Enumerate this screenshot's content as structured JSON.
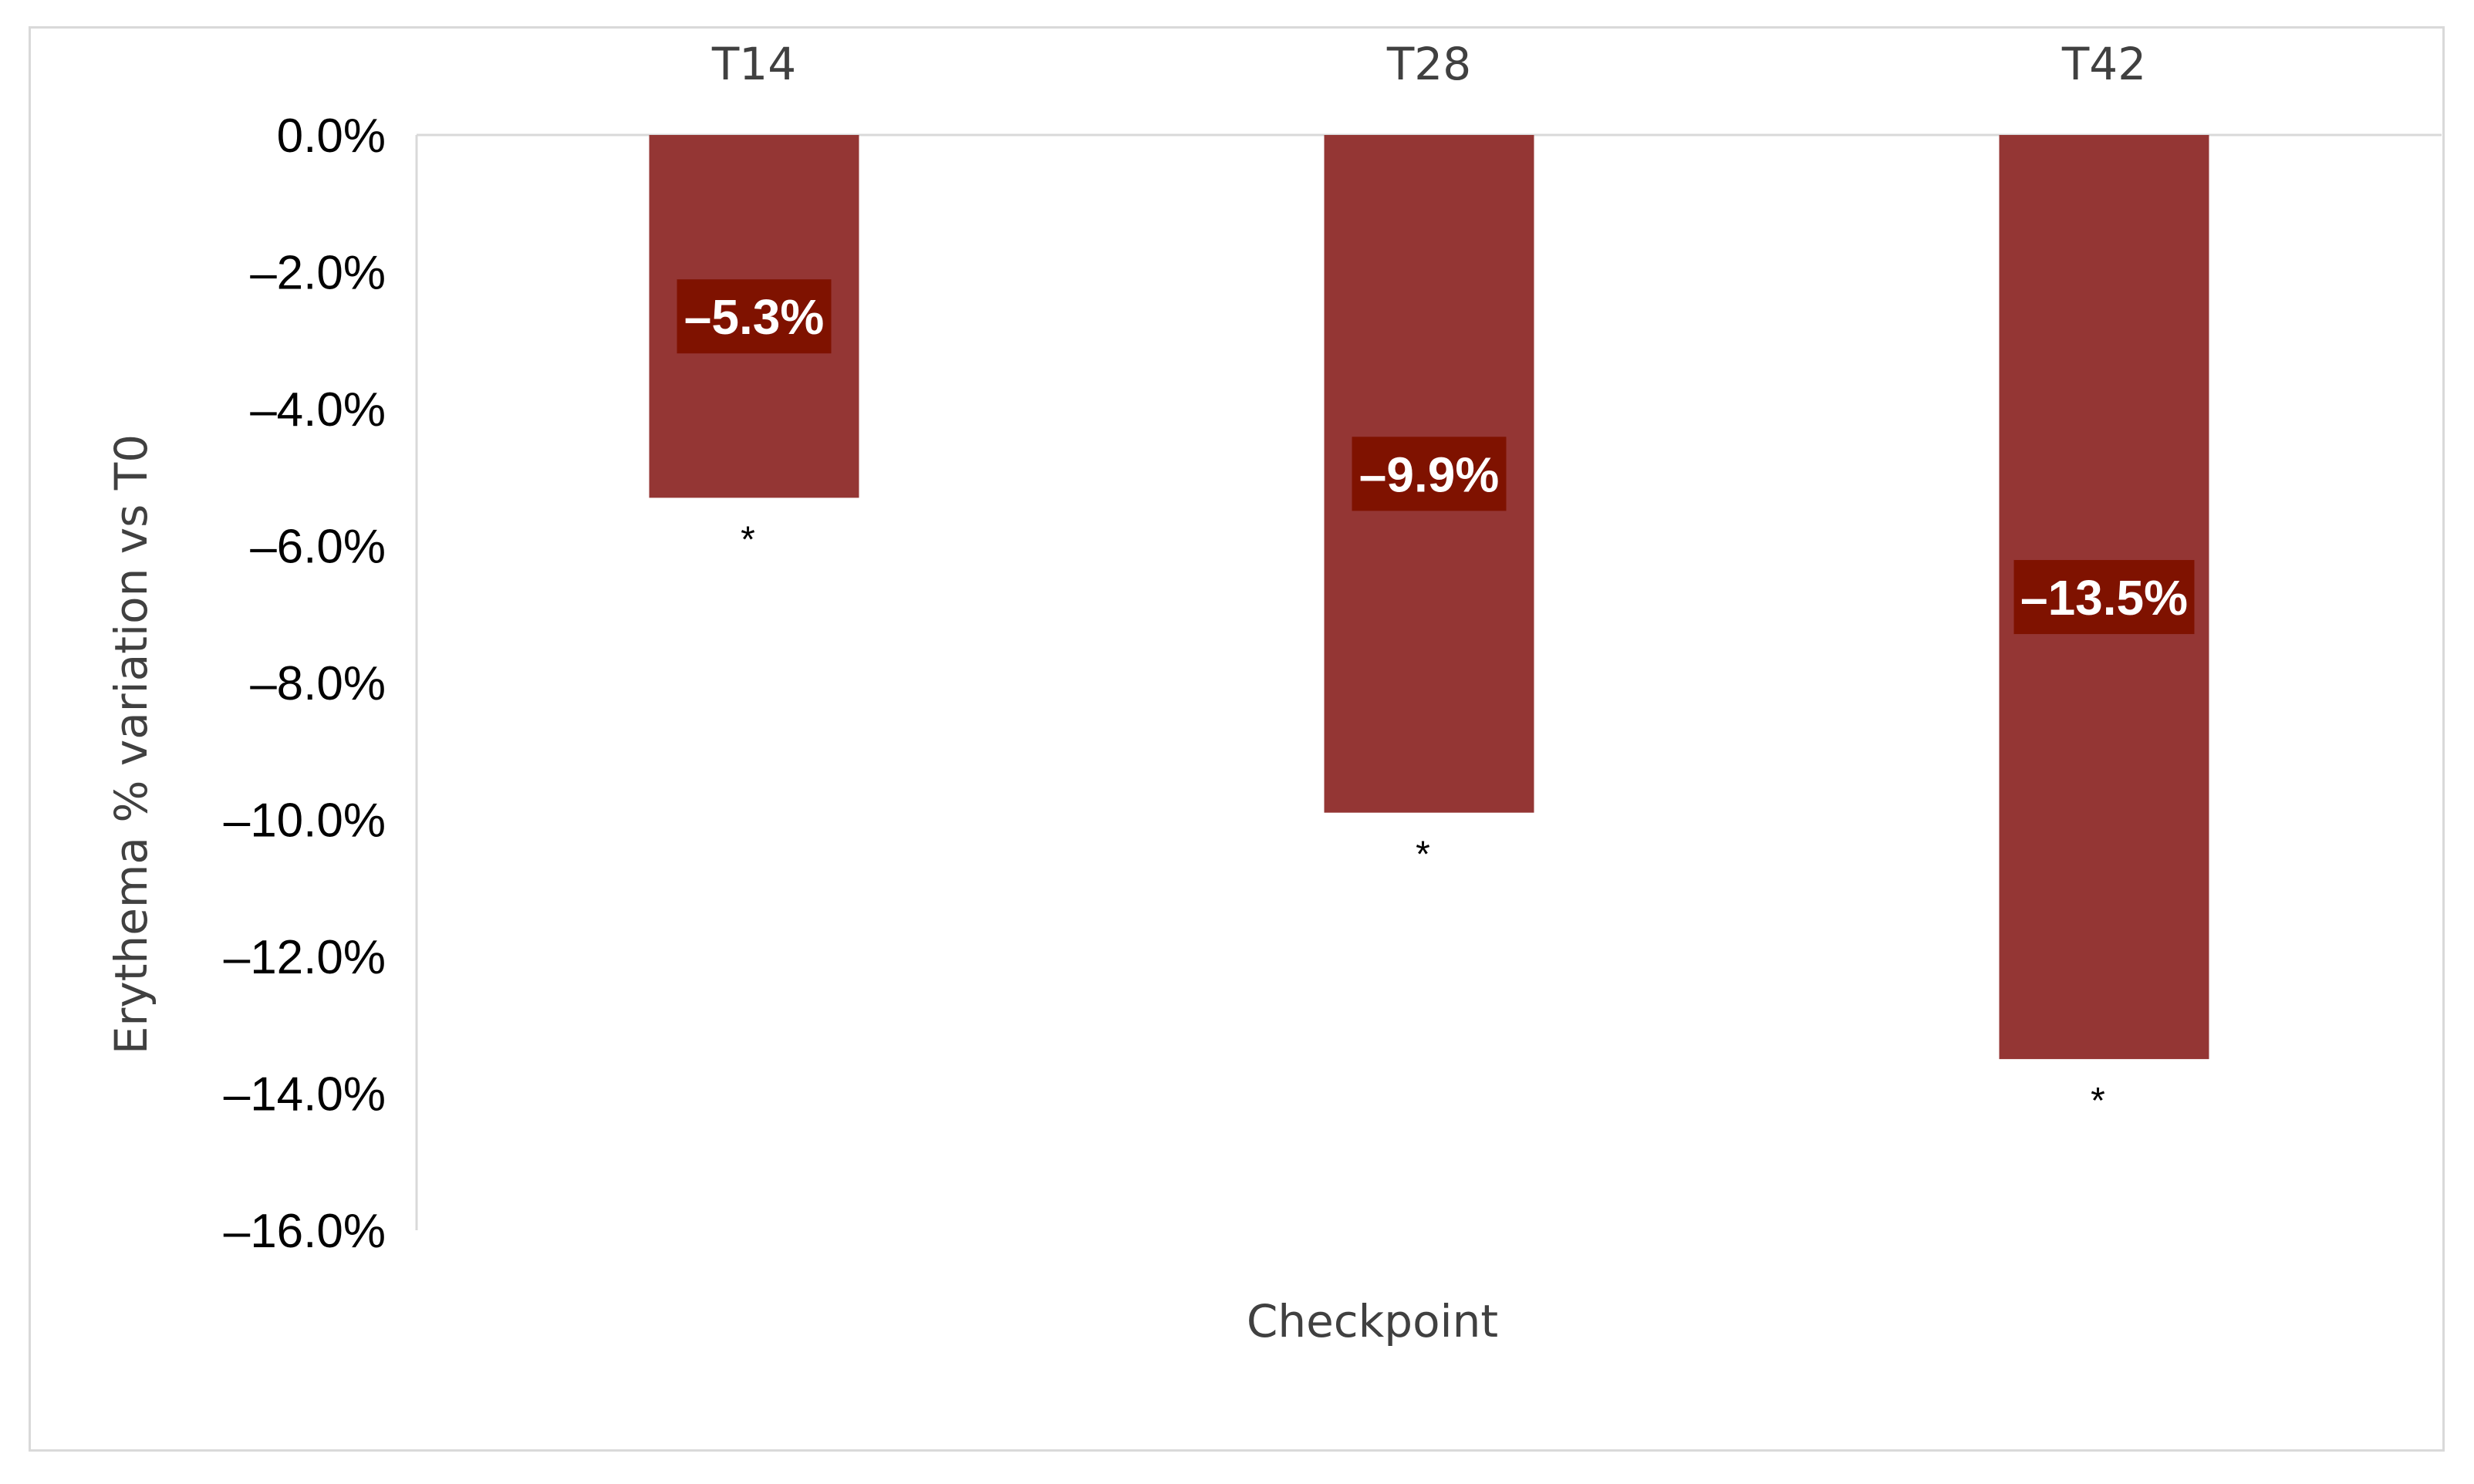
{
  "chart_data": {
    "type": "bar",
    "categories": [
      "T14",
      "T28",
      "T42"
    ],
    "series": [
      {
        "values": [
          -5.3,
          -9.9,
          -13.5
        ]
      }
    ],
    "data_labels": [
      "–5.3%",
      "–9.9%",
      "–13.5%"
    ],
    "significance_marks": [
      "*",
      "*",
      "*"
    ],
    "title": "",
    "xlabel": "Checkpoint",
    "ylabel": "Erythema  % variation vs T0",
    "ylim": [
      -16,
      0
    ],
    "yticks": [
      0,
      -2,
      -4,
      -6,
      -8,
      -10,
      -12,
      -14,
      -16
    ],
    "ytick_labels": [
      "0.0%",
      "–2.0%",
      "–4.0%",
      "–6.0%",
      "–8.0%",
      "–10.0%",
      "–12.0%",
      "–14.0%",
      "–16.0%"
    ],
    "x_axis_position": "top",
    "grid": false,
    "legend": "none",
    "colors": {
      "bar": "#943634",
      "label_box": "#7f1200",
      "axis": "#d9d9d9"
    }
  }
}
